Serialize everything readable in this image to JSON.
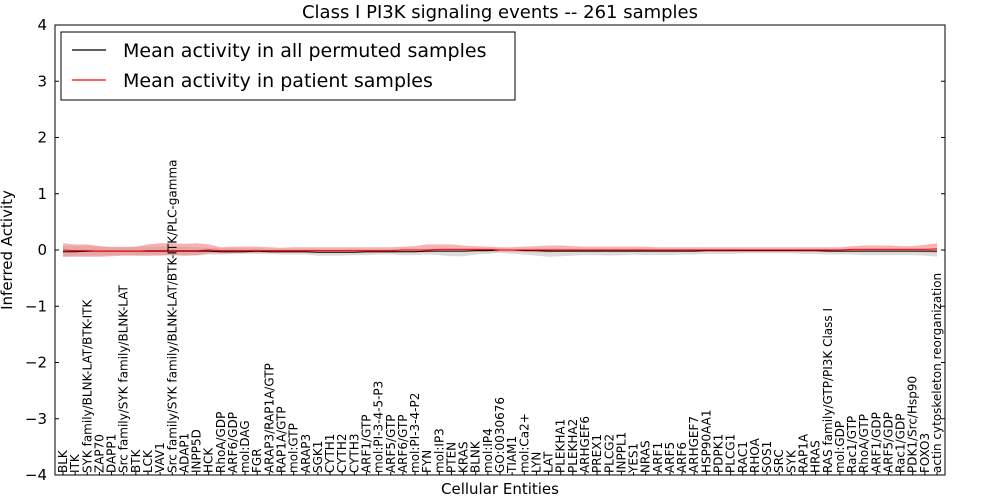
{
  "chart_data": {
    "type": "line",
    "title": "Class I PI3K signaling events -- 261 samples",
    "xlabel": "Cellular Entities",
    "ylabel": "Inferred Activity",
    "ylim": [
      -4,
      4
    ],
    "yticks": [
      "4",
      "3",
      "2",
      "1",
      "0",
      "−1",
      "−2",
      "−3",
      "−4"
    ],
    "legend": {
      "location": "top-left",
      "entries": [
        {
          "label": "Mean activity in all permuted samples",
          "color": "#000000"
        },
        {
          "label": "Mean activity in patient samples",
          "color": "#ff0000"
        }
      ]
    },
    "categories": [
      "BLK",
      "ITK",
      "SYK family/BLNK-LAT/BTK-ITK",
      "ZAP70",
      "DAPP1",
      "Src family/SYK family/BLNK-LAT",
      "BTK",
      "LCK",
      "VAV1",
      "Src family/SYK family/BLNK-LAT/BTK-ITK/PLC-gamma",
      "ADAP1",
      "INPP5D",
      "HCK",
      "RhoA/GDP",
      "ARF6/GDP",
      "mol:DAG",
      "FGR",
      "ARAP3/RAP1A/GTP",
      "RAP1A/GTP",
      "mol:GTP",
      "ARAP3",
      "SGK1",
      "CYTH1",
      "CYTH2",
      "CYTH3",
      "ARF1/GTP",
      "mol:PI-3-4-5-P3",
      "ARF5/GTP",
      "ARF6/GTP",
      "mol:PI-3-4-P2",
      "FYN",
      "mol:IP3",
      "PTEN",
      "KRAS",
      "BLNK",
      "mol:IP4",
      "GO:0030676",
      "TIAM1",
      "mol:Ca2+",
      "LYN",
      "LAT",
      "PLEKHA1",
      "PLEKHA2",
      "ARHGEF6",
      "PREX1",
      "PLCG2",
      "INPPL1",
      "YES1",
      "NRAS",
      "ARF1",
      "ARF5",
      "ARF6",
      "ARHGEF7",
      "HSP90AA1",
      "PDPK1",
      "PLCG1",
      "RAC1",
      "RHOA",
      "SOS1",
      "SRC",
      "SYK",
      "RAP1A",
      "HRAS",
      "RAS family/GTP/PI3K Class I",
      "mol:GDP",
      "Rac1/GTP",
      "RhoA/GTP",
      "ARF1/GDP",
      "ARF5/GDP",
      "Rac1/GDP",
      "PDK1/Src/Hsp90",
      "FOXO3",
      "actin cytoskeleton reorganization"
    ],
    "series": [
      {
        "name": "Mean activity in all permuted samples",
        "color": "#000000",
        "band_color": "#c8c8c8",
        "values": [
          -0.03,
          -0.03,
          -0.02,
          -0.02,
          -0.02,
          -0.02,
          -0.02,
          -0.02,
          -0.02,
          -0.02,
          -0.02,
          -0.02,
          -0.02,
          -0.03,
          -0.03,
          -0.03,
          -0.02,
          -0.03,
          -0.03,
          -0.03,
          -0.03,
          -0.04,
          -0.04,
          -0.04,
          -0.04,
          -0.03,
          -0.03,
          -0.03,
          -0.03,
          -0.03,
          -0.02,
          -0.02,
          -0.02,
          -0.02,
          -0.01,
          -0.01,
          0.0,
          0.0,
          -0.01,
          -0.01,
          -0.02,
          -0.02,
          -0.02,
          -0.02,
          -0.02,
          -0.02,
          -0.02,
          -0.02,
          -0.02,
          -0.02,
          -0.02,
          -0.02,
          -0.02,
          -0.01,
          -0.01,
          -0.01,
          -0.01,
          -0.01,
          -0.01,
          -0.01,
          -0.01,
          -0.01,
          -0.01,
          -0.02,
          -0.02,
          -0.02,
          -0.02,
          -0.02,
          -0.02,
          -0.02,
          -0.02,
          -0.02,
          -0.02
        ],
        "band_low": [
          -0.12,
          -0.1,
          -0.1,
          -0.1,
          -0.09,
          -0.09,
          -0.1,
          -0.1,
          -0.09,
          -0.09,
          -0.1,
          -0.1,
          -0.08,
          -0.08,
          -0.07,
          -0.07,
          -0.07,
          -0.07,
          -0.08,
          -0.08,
          -0.08,
          -0.1,
          -0.1,
          -0.1,
          -0.09,
          -0.09,
          -0.08,
          -0.08,
          -0.09,
          -0.09,
          -0.08,
          -0.09,
          -0.11,
          -0.11,
          -0.08,
          -0.07,
          -0.05,
          -0.07,
          -0.08,
          -0.1,
          -0.12,
          -0.11,
          -0.1,
          -0.09,
          -0.09,
          -0.1,
          -0.09,
          -0.08,
          -0.09,
          -0.09,
          -0.09,
          -0.08,
          -0.08,
          -0.07,
          -0.07,
          -0.07,
          -0.06,
          -0.06,
          -0.06,
          -0.06,
          -0.06,
          -0.07,
          -0.07,
          -0.08,
          -0.08,
          -0.08,
          -0.09,
          -0.09,
          -0.09,
          -0.09,
          -0.09,
          -0.1,
          -0.12
        ],
        "band_high": [
          0.07,
          0.07,
          0.07,
          0.06,
          0.06,
          0.06,
          0.06,
          0.06,
          0.06,
          0.06,
          0.06,
          0.05,
          0.04,
          0.03,
          0.03,
          0.03,
          0.03,
          0.02,
          0.02,
          0.02,
          0.02,
          0.02,
          0.02,
          0.02,
          0.02,
          0.02,
          0.02,
          0.02,
          0.02,
          0.02,
          0.02,
          0.02,
          0.02,
          0.02,
          0.02,
          0.02,
          0.03,
          0.02,
          0.02,
          0.02,
          0.02,
          0.02,
          0.02,
          0.02,
          0.02,
          0.02,
          0.02,
          0.02,
          0.02,
          0.02,
          0.02,
          0.02,
          0.02,
          0.02,
          0.02,
          0.02,
          0.02,
          0.02,
          0.02,
          0.02,
          0.02,
          0.02,
          0.02,
          0.02,
          0.02,
          0.02,
          0.02,
          0.02,
          0.02,
          0.02,
          0.02,
          0.02,
          0.02
        ]
      },
      {
        "name": "Mean activity in patient samples",
        "color": "#ff0000",
        "band_color": "#f08080",
        "values": [
          0.0,
          -0.01,
          -0.01,
          -0.02,
          -0.02,
          -0.02,
          -0.02,
          -0.01,
          -0.01,
          -0.01,
          -0.01,
          -0.01,
          0.0,
          -0.01,
          -0.01,
          -0.01,
          -0.01,
          -0.01,
          -0.01,
          -0.01,
          -0.01,
          -0.01,
          -0.01,
          -0.01,
          -0.01,
          -0.01,
          -0.01,
          -0.01,
          0.0,
          0.0,
          0.0,
          0.01,
          0.01,
          0.01,
          0.01,
          0.01,
          0.0,
          0.0,
          0.0,
          0.0,
          0.0,
          0.0,
          0.0,
          0.0,
          0.0,
          0.0,
          0.0,
          0.0,
          0.0,
          0.0,
          0.0,
          0.0,
          0.0,
          0.0,
          0.0,
          0.0,
          0.0,
          0.0,
          0.0,
          0.0,
          0.0,
          0.0,
          0.0,
          0.0,
          0.0,
          0.01,
          0.01,
          0.01,
          0.01,
          0.01,
          0.01,
          0.01,
          0.02
        ],
        "band_low": [
          -0.12,
          -0.12,
          -0.12,
          -0.12,
          -0.11,
          -0.1,
          -0.1,
          -0.1,
          -0.1,
          -0.09,
          -0.1,
          -0.09,
          -0.06,
          -0.06,
          -0.06,
          -0.05,
          -0.05,
          -0.05,
          -0.05,
          -0.05,
          -0.05,
          -0.05,
          -0.05,
          -0.05,
          -0.05,
          -0.05,
          -0.05,
          -0.05,
          -0.04,
          -0.04,
          -0.04,
          -0.03,
          -0.03,
          -0.03,
          -0.03,
          -0.03,
          -0.03,
          -0.03,
          -0.03,
          -0.04,
          -0.04,
          -0.03,
          -0.03,
          -0.03,
          -0.03,
          -0.03,
          -0.03,
          -0.03,
          -0.03,
          -0.03,
          -0.03,
          -0.03,
          -0.03,
          -0.03,
          -0.03,
          -0.03,
          -0.03,
          -0.03,
          -0.03,
          -0.03,
          -0.03,
          -0.03,
          -0.03,
          -0.03,
          -0.03,
          -0.03,
          -0.03,
          -0.03,
          -0.03,
          -0.03,
          -0.03,
          -0.04,
          -0.05
        ],
        "band_high": [
          0.12,
          0.1,
          0.1,
          0.07,
          0.05,
          0.05,
          0.06,
          0.1,
          0.12,
          0.12,
          0.11,
          0.12,
          0.1,
          0.05,
          0.06,
          0.06,
          0.06,
          0.05,
          0.04,
          0.05,
          0.05,
          0.05,
          0.05,
          0.05,
          0.05,
          0.05,
          0.05,
          0.05,
          0.06,
          0.07,
          0.1,
          0.1,
          0.1,
          0.08,
          0.07,
          0.06,
          0.05,
          0.05,
          0.06,
          0.07,
          0.08,
          0.08,
          0.07,
          0.06,
          0.06,
          0.06,
          0.06,
          0.06,
          0.06,
          0.05,
          0.05,
          0.05,
          0.05,
          0.05,
          0.05,
          0.05,
          0.05,
          0.05,
          0.05,
          0.05,
          0.05,
          0.05,
          0.05,
          0.05,
          0.05,
          0.07,
          0.08,
          0.08,
          0.08,
          0.07,
          0.07,
          0.09,
          0.12
        ]
      }
    ]
  }
}
